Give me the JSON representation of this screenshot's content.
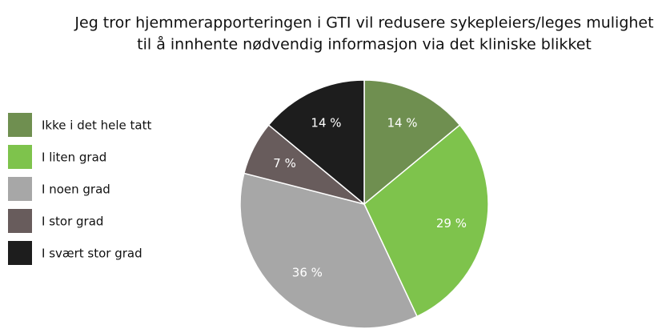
{
  "chart_data": {
    "type": "pie",
    "title": [
      "Jeg tror hjemmerapporteringen i GTI vil redusere sykepleiers/leges mulighet",
      "til å innhente nødvendig informasjon via det kliniske blikket"
    ],
    "categories": [
      "Ikke i det hele tatt",
      "I liten grad",
      "I noen grad",
      "I stor grad",
      "I svært stor grad"
    ],
    "values": [
      14,
      29,
      36,
      7,
      14
    ],
    "value_labels": [
      "14 %",
      "29 %",
      "36 %",
      "7 %",
      "14 %"
    ],
    "colors": [
      "#6f8f50",
      "#7ec34c",
      "#a7a7a7",
      "#685c5c",
      "#1d1d1d"
    ],
    "legend": "left"
  }
}
